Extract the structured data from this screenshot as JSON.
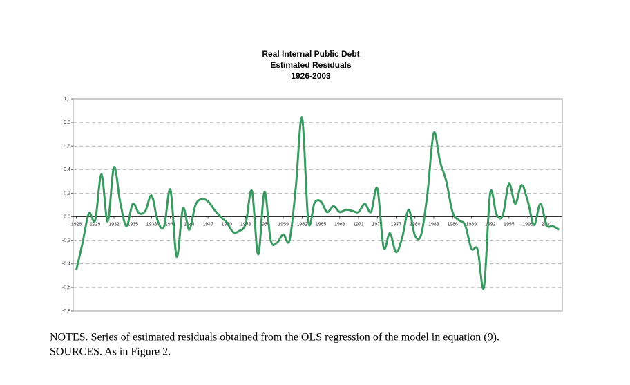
{
  "chart_data": {
    "type": "line",
    "title": [
      "Real Internal Public Debt",
      "Estimated Residuals",
      "1926-2003"
    ],
    "x": [
      1926,
      1927,
      1928,
      1929,
      1930,
      1931,
      1932,
      1933,
      1934,
      1935,
      1936,
      1937,
      1938,
      1939,
      1940,
      1941,
      1942,
      1943,
      1944,
      1945,
      1946,
      1947,
      1948,
      1949,
      1950,
      1951,
      1952,
      1953,
      1954,
      1955,
      1956,
      1957,
      1958,
      1959,
      1960,
      1961,
      1962,
      1963,
      1964,
      1965,
      1966,
      1967,
      1968,
      1969,
      1970,
      1971,
      1972,
      1973,
      1974,
      1975,
      1976,
      1977,
      1978,
      1979,
      1980,
      1981,
      1982,
      1983,
      1984,
      1985,
      1986,
      1987,
      1988,
      1989,
      1990,
      1991,
      1992,
      1993,
      1994,
      1995,
      1996,
      1997,
      1998,
      1999,
      2000,
      2001,
      2002,
      2003
    ],
    "series": [
      {
        "color": "#3a9a62",
        "values": [
          -0.45,
          -0.22,
          0.03,
          -0.03,
          0.36,
          -0.04,
          0.42,
          0.12,
          -0.08,
          0.11,
          0.03,
          0.05,
          0.18,
          -0.04,
          -0.08,
          0.23,
          -0.34,
          0.07,
          -0.11,
          0.1,
          0.15,
          0.13,
          0.06,
          0.0,
          -0.05,
          -0.13,
          -0.12,
          -0.06,
          0.22,
          -0.32,
          0.21,
          -0.2,
          -0.22,
          -0.15,
          -0.2,
          0.25,
          0.84,
          -0.04,
          0.12,
          0.13,
          0.04,
          0.09,
          0.04,
          0.06,
          0.05,
          0.04,
          0.11,
          0.04,
          0.24,
          -0.26,
          -0.14,
          -0.3,
          -0.17,
          0.06,
          -0.16,
          -0.15,
          0.2,
          0.71,
          0.47,
          0.3,
          0.04,
          -0.03,
          -0.07,
          -0.27,
          -0.28,
          -0.6,
          0.2,
          0.02,
          0.01,
          0.28,
          0.11,
          0.27,
          0.13,
          -0.07,
          0.11,
          -0.07,
          -0.08,
          -0.11
        ]
      }
    ],
    "xlim": [
      1925.5,
      2003.5
    ],
    "xticks": [
      1926,
      1929,
      1932,
      1935,
      1938,
      1941,
      1944,
      1947,
      1950,
      1953,
      1956,
      1959,
      1962,
      1965,
      1968,
      1971,
      1974,
      1977,
      1980,
      1983,
      1986,
      1989,
      1992,
      1995,
      1998,
      2001
    ],
    "ylim": [
      -0.8,
      1.0
    ],
    "yticks": [
      {
        "value": -0.8,
        "label": "-0,8"
      },
      {
        "value": -0.6,
        "label": "-0,6"
      },
      {
        "value": -0.4,
        "label": "-0,4"
      },
      {
        "value": -0.2,
        "label": "-0,2"
      },
      {
        "value": 0,
        "label": "0,0"
      },
      {
        "value": 0.2,
        "label": "0,2"
      },
      {
        "value": 0.4,
        "label": "0,4"
      },
      {
        "value": 0.6,
        "label": "0,6"
      },
      {
        "value": 0.8,
        "label": "0,8"
      },
      {
        "value": 1.0,
        "label": "1,0"
      }
    ],
    "grid": true,
    "notes": [
      "NOTES. Series of estimated residuals obtained from the OLS regression of the model in equation (9).",
      "SOURCES. As in Figure 2."
    ]
  }
}
